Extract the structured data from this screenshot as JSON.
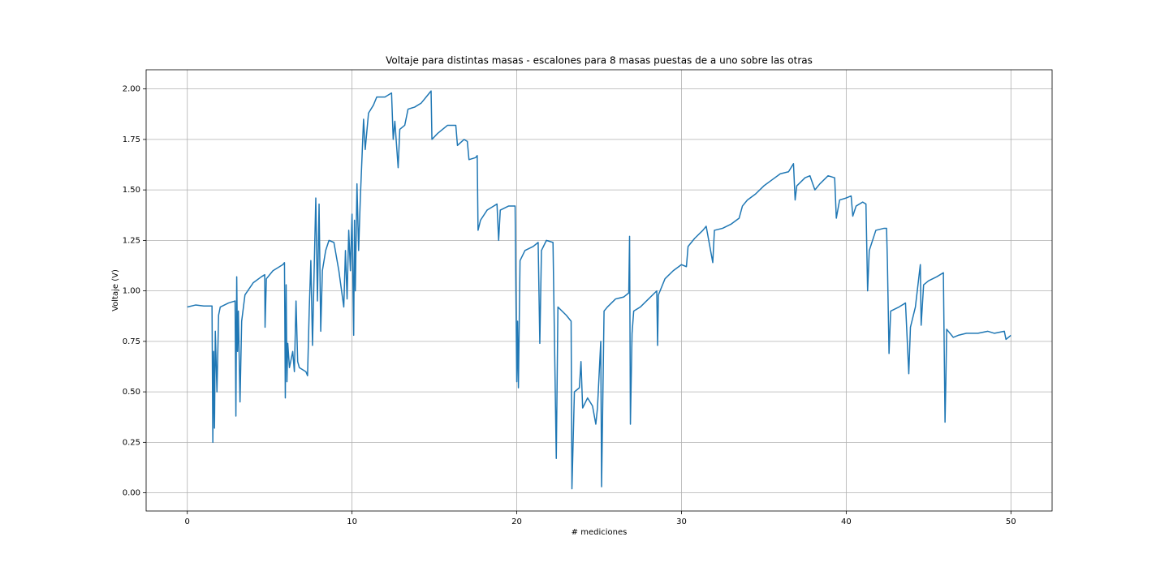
{
  "chart_data": {
    "type": "line",
    "title": "Voltaje para distintas masas - escalones para 8 masas puestas de a uno sobre las otras",
    "xlabel": "# mediciones",
    "ylabel": "Voltaje (V)",
    "color": "#1f77b4",
    "grid": true,
    "xlim": [
      -2.5,
      52.5
    ],
    "xticks": [
      0,
      10,
      20,
      30,
      40,
      50
    ],
    "ylim": [
      -0.09,
      2.095
    ],
    "yticks": [
      {
        "value": 0,
        "label": "0.00"
      },
      {
        "value": 0.25,
        "label": "0.25"
      },
      {
        "value": 0.5,
        "label": "0.50"
      },
      {
        "value": 0.75,
        "label": "0.75"
      },
      {
        "value": 1,
        "label": "1.00"
      },
      {
        "value": 1.25,
        "label": "1.25"
      },
      {
        "value": 1.5,
        "label": "1.50"
      },
      {
        "value": 1.75,
        "label": "1.75"
      },
      {
        "value": 2,
        "label": "2.00"
      }
    ],
    "x": [
      0,
      0.5,
      1,
      1.5,
      1.55,
      1.6,
      1.65,
      1.7,
      1.8,
      1.9,
      2.0,
      2.5,
      2.9,
      2.95,
      3.0,
      3.05,
      3.1,
      3.2,
      3.3,
      3.5,
      4,
      4.5,
      4.7,
      4.72,
      4.8,
      5.2,
      5.8,
      5.9,
      5.95,
      6.0,
      6.05,
      6.1,
      6.2,
      6.4,
      6.5,
      6.6,
      6.7,
      6.8,
      7.2,
      7.3,
      7.4,
      7.5,
      7.6,
      7.7,
      7.8,
      7.9,
      8.0,
      8.1,
      8.2,
      8.4,
      8.6,
      8.9,
      9.2,
      9.4,
      9.5,
      9.6,
      9.7,
      9.8,
      9.9,
      10.0,
      10.1,
      10.15,
      10.2,
      10.3,
      10.4,
      10.5,
      10.6,
      10.7,
      10.8,
      11.0,
      11.3,
      11.5,
      12,
      12.4,
      12.5,
      12.6,
      12.8,
      12.9,
      13.2,
      13.4,
      13.8,
      14.2,
      14.5,
      14.8,
      14.85,
      15.2,
      15.8,
      16.3,
      16.4,
      16.8,
      17,
      17.1,
      17.5,
      17.6,
      17.65,
      17.8,
      18.2,
      18.8,
      18.9,
      19.0,
      19.5,
      19.9,
      20.0,
      20.05,
      20.1,
      20.2,
      20.5,
      21,
      21.3,
      21.4,
      21.5,
      21.8,
      22.2,
      22.4,
      22.5,
      23,
      23.3,
      23.35,
      23.5,
      23.8,
      23.9,
      24.0,
      24.3,
      24.6,
      24.8,
      24.9,
      25.1,
      25.15,
      25.3,
      25.5,
      26,
      26.5,
      26.8,
      26.85,
      26.9,
      27.0,
      27.1,
      27.5,
      28,
      28.5,
      28.55,
      28.6,
      29,
      29.5,
      30,
      30.3,
      30.4,
      30.8,
      31.3,
      31.5,
      31.9,
      32,
      32.5,
      33,
      33.5,
      33.7,
      34,
      34.5,
      35,
      35.5,
      36,
      36.5,
      36.8,
      36.9,
      37,
      37.5,
      37.8,
      38.1,
      38.4,
      38.9,
      39.3,
      39.4,
      39.6,
      40,
      40.3,
      40.4,
      40.6,
      41,
      41.2,
      41.3,
      41.4,
      41.8,
      42.3,
      42.45,
      42.5,
      42.6,
      42.7,
      43.2,
      43.6,
      43.8,
      43.9,
      44.2,
      44.5,
      44.55,
      44.7,
      45,
      45.5,
      45.9,
      46,
      46.05,
      46.1,
      46.5,
      46.8,
      47.3,
      48,
      48.6,
      49,
      49.6,
      49.7,
      50
    ],
    "values": [
      0.92,
      0.93,
      0.925,
      0.925,
      0.25,
      0.7,
      0.32,
      0.8,
      0.5,
      0.88,
      0.92,
      0.94,
      0.95,
      0.38,
      1.07,
      0.7,
      0.9,
      0.45,
      0.85,
      0.98,
      1.04,
      1.07,
      1.08,
      0.82,
      1.06,
      1.1,
      1.13,
      1.14,
      0.47,
      1.03,
      0.55,
      0.74,
      0.62,
      0.7,
      0.6,
      0.95,
      0.65,
      0.62,
      0.6,
      0.58,
      0.9,
      1.15,
      0.73,
      1.1,
      1.46,
      0.95,
      1.43,
      0.8,
      1.1,
      1.2,
      1.25,
      1.24,
      1.1,
      0.98,
      0.92,
      1.2,
      0.96,
      1.3,
      1.1,
      1.38,
      0.78,
      1.35,
      1.0,
      1.53,
      1.2,
      1.45,
      1.65,
      1.85,
      1.7,
      1.88,
      1.92,
      1.96,
      1.96,
      1.98,
      1.75,
      1.84,
      1.61,
      1.8,
      1.82,
      1.9,
      1.91,
      1.93,
      1.96,
      1.99,
      1.75,
      1.78,
      1.82,
      1.82,
      1.72,
      1.75,
      1.74,
      1.65,
      1.66,
      1.67,
      1.3,
      1.35,
      1.4,
      1.43,
      1.25,
      1.4,
      1.42,
      1.42,
      0.55,
      0.85,
      0.52,
      1.15,
      1.2,
      1.22,
      1.24,
      0.74,
      1.2,
      1.25,
      1.24,
      0.17,
      0.92,
      0.88,
      0.85,
      0.02,
      0.5,
      0.52,
      0.65,
      0.42,
      0.47,
      0.43,
      0.34,
      0.42,
      0.75,
      0.03,
      0.9,
      0.92,
      0.96,
      0.97,
      0.99,
      1.27,
      0.34,
      0.79,
      0.9,
      0.92,
      0.96,
      1.0,
      0.73,
      0.98,
      1.06,
      1.1,
      1.13,
      1.12,
      1.22,
      1.26,
      1.3,
      1.32,
      1.14,
      1.3,
      1.31,
      1.33,
      1.36,
      1.42,
      1.45,
      1.48,
      1.52,
      1.55,
      1.58,
      1.59,
      1.63,
      1.45,
      1.52,
      1.56,
      1.57,
      1.5,
      1.53,
      1.57,
      1.56,
      1.36,
      1.45,
      1.46,
      1.47,
      1.37,
      1.42,
      1.44,
      1.43,
      1.0,
      1.2,
      1.3,
      1.31,
      1.31,
      1.15,
      0.69,
      0.9,
      0.92,
      0.94,
      0.59,
      0.82,
      0.92,
      1.13,
      0.83,
      1.03,
      1.05,
      1.07,
      1.09,
      0.35,
      0.55,
      0.81,
      0.77,
      0.78,
      0.79,
      0.79,
      0.8,
      0.79,
      0.8,
      0.76,
      0.78
    ]
  }
}
